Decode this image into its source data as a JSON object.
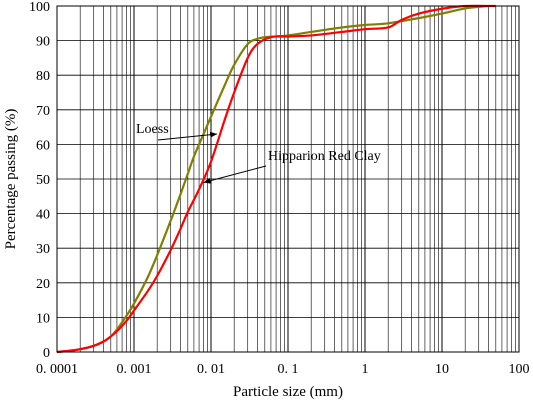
{
  "chart_data": {
    "type": "line",
    "title": "",
    "xlabel": "Particle size (mm)",
    "ylabel": "Percentage passing (%)",
    "x_scale": "log",
    "xlim": [
      0.0001,
      100
    ],
    "ylim": [
      0,
      100
    ],
    "grid": true,
    "x_tick_labels": [
      "0. 0001",
      "0. 001",
      "0. 01",
      "0. 1",
      "1",
      "10",
      "100"
    ],
    "x_ticks": [
      0.0001,
      0.001,
      0.01,
      0.1,
      1,
      10,
      100
    ],
    "y_ticks": [
      0,
      10,
      20,
      30,
      40,
      50,
      60,
      70,
      80,
      90,
      100
    ],
    "series": [
      {
        "name": "Loess",
        "color": "#7f7f00",
        "points": [
          [
            0.0001,
            0
          ],
          [
            0.00015,
            0.4
          ],
          [
            0.0002,
            0.8
          ],
          [
            0.0003,
            1.8
          ],
          [
            0.0004,
            3.0
          ],
          [
            0.0005,
            4.5
          ],
          [
            0.0006,
            6.5
          ],
          [
            0.0008,
            10.5
          ],
          [
            0.001,
            14.0
          ],
          [
            0.0015,
            21.5
          ],
          [
            0.002,
            28.0
          ],
          [
            0.003,
            38.0
          ],
          [
            0.004,
            45.5
          ],
          [
            0.005,
            51.5
          ],
          [
            0.006,
            56.5
          ],
          [
            0.008,
            63.0
          ],
          [
            0.01,
            68.0
          ],
          [
            0.015,
            77.0
          ],
          [
            0.02,
            83.0
          ],
          [
            0.03,
            89.0
          ],
          [
            0.04,
            90.5
          ],
          [
            0.05,
            91.0
          ],
          [
            0.07,
            91.2
          ],
          [
            0.1,
            91.5
          ],
          [
            0.2,
            92.5
          ],
          [
            0.5,
            93.8
          ],
          [
            1,
            94.5
          ],
          [
            2,
            95.0
          ],
          [
            5,
            96.5
          ],
          [
            10,
            97.8
          ],
          [
            20,
            99.3
          ],
          [
            40,
            100
          ]
        ]
      },
      {
        "name": "Hipparion Red Clay",
        "color": "#ff0000",
        "points": [
          [
            0.0001,
            0
          ],
          [
            0.00015,
            0.4
          ],
          [
            0.0002,
            0.8
          ],
          [
            0.0003,
            1.8
          ],
          [
            0.0004,
            3.0
          ],
          [
            0.0005,
            4.5
          ],
          [
            0.0006,
            6.0
          ],
          [
            0.0008,
            9.0
          ],
          [
            0.001,
            12.0
          ],
          [
            0.0015,
            17.5
          ],
          [
            0.002,
            22.0
          ],
          [
            0.003,
            29.5
          ],
          [
            0.004,
            35.5
          ],
          [
            0.005,
            40.5
          ],
          [
            0.007,
            47.0
          ],
          [
            0.01,
            55.0
          ],
          [
            0.015,
            67.0
          ],
          [
            0.02,
            75.0
          ],
          [
            0.03,
            85.0
          ],
          [
            0.04,
            89.0
          ],
          [
            0.06,
            91.0
          ],
          [
            0.1,
            91.2
          ],
          [
            0.2,
            91.5
          ],
          [
            0.5,
            92.5
          ],
          [
            1,
            93.3
          ],
          [
            2,
            93.8
          ],
          [
            3,
            96.0
          ],
          [
            5,
            97.8
          ],
          [
            10,
            99.2
          ],
          [
            20,
            100
          ],
          [
            50,
            100
          ]
        ]
      }
    ],
    "annotations": [
      {
        "text": "Loess",
        "series": "Loess",
        "arrow_to": [
          0.012,
          63
        ]
      },
      {
        "text": "Hipparion Red Clay",
        "series": "Hipparion Red Clay",
        "arrow_to": [
          0.008,
          49
        ]
      }
    ]
  }
}
